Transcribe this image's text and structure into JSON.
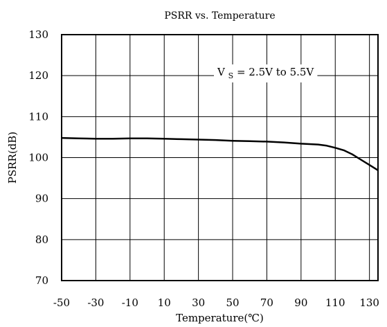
{
  "chart_data": {
    "type": "line",
    "title": "PSRR vs. Temperature",
    "xlabel": "Temperature(℃)",
    "ylabel": "PSRR(dB)",
    "xlim": [
      -50,
      135
    ],
    "ylim": [
      70,
      130
    ],
    "x_ticks": [
      -50,
      -30,
      -10,
      10,
      30,
      50,
      70,
      90,
      110,
      130
    ],
    "y_ticks": [
      70,
      80,
      90,
      100,
      110,
      120,
      130
    ],
    "x_tick_labels": [
      "-50",
      "-30",
      "-10",
      "10",
      "30",
      "50",
      "70",
      "90",
      "110",
      "130"
    ],
    "y_tick_labels": [
      "70",
      "80",
      "90",
      "100",
      "110",
      "120",
      "130"
    ],
    "grid": true,
    "annotation": {
      "var": "V",
      "sub": "S",
      "rest": " = 2.5V to 5.5V"
    },
    "series": [
      {
        "x": [
          -50,
          -40,
          -30,
          -20,
          -10,
          0,
          10,
          20,
          30,
          40,
          50,
          60,
          70,
          80,
          90,
          100,
          105,
          110,
          115,
          120,
          125,
          130,
          135
        ],
        "y": [
          104.8,
          104.7,
          104.6,
          104.6,
          104.7,
          104.7,
          104.6,
          104.5,
          104.4,
          104.3,
          104.1,
          104.0,
          103.9,
          103.7,
          103.4,
          103.2,
          102.9,
          102.4,
          101.8,
          100.8,
          99.5,
          98.2,
          96.9
        ],
        "color": "#000000"
      }
    ]
  }
}
